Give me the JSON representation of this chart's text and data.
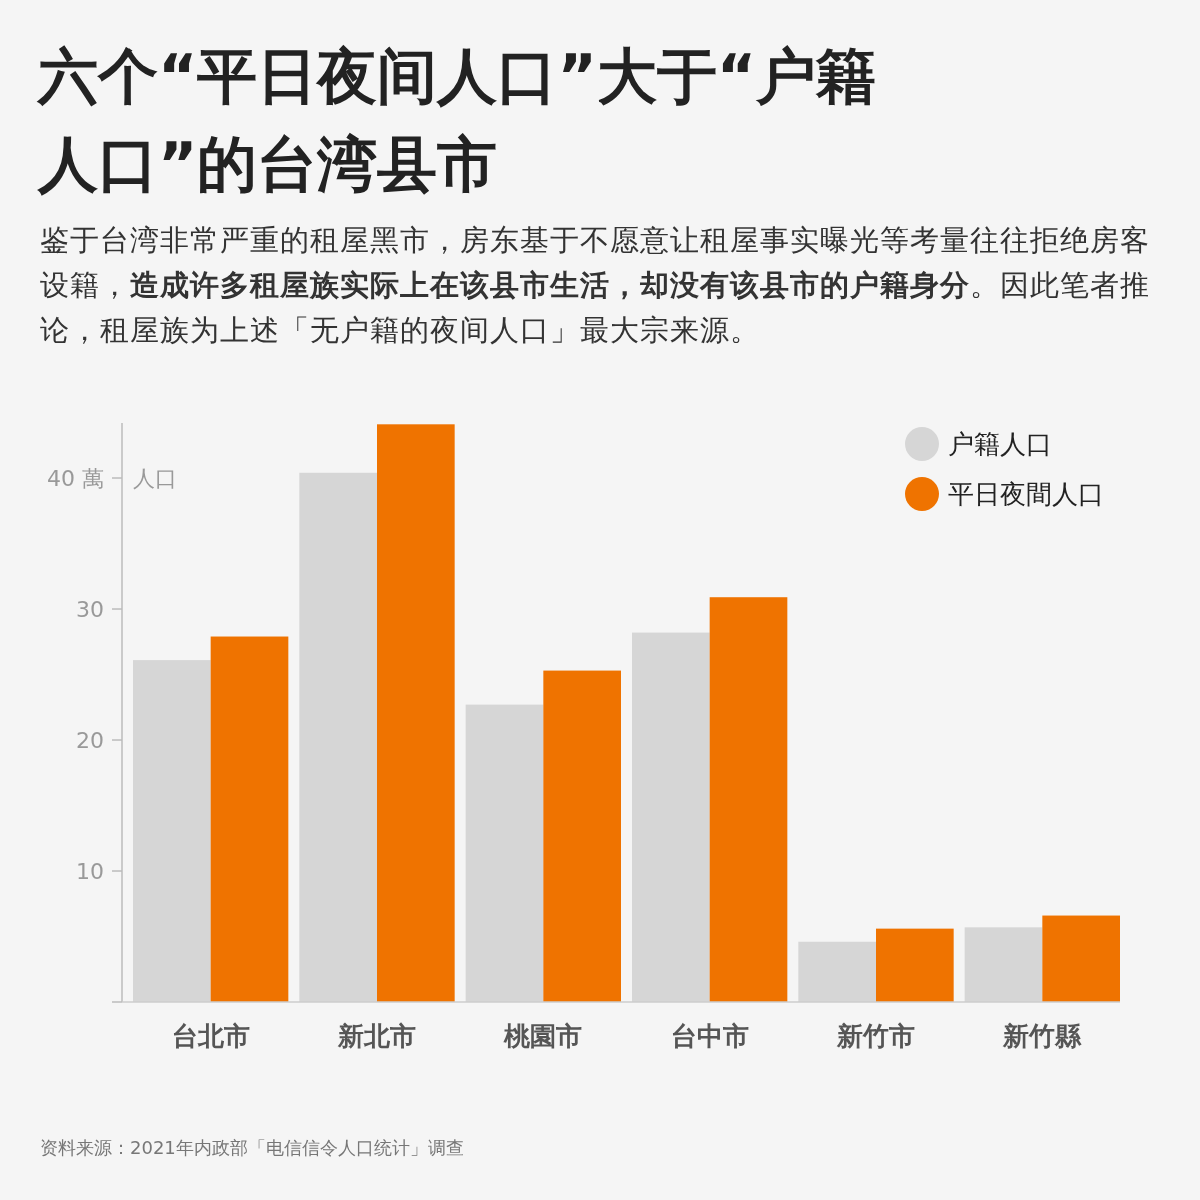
{
  "chart_data": {
    "type": "bar",
    "title": "六个“平日夜间人口”大于“户籍人口”的台湾县市",
    "subtitle": "鉴于台湾非常严重的租屋黑市，房东基于不愿意让租屋事实曝光等考量往往拒绝房客设籍，**造成许多租屋族实际上在该县市生活，却没有该县市的户籍身分**。因此笔者推论，租屋族为上述「无户籍的夜间人口」最大宗来源。",
    "ylabel": "人口",
    "categories": [
      "台北市",
      "新北市",
      "桃園市",
      "台中市",
      "新竹市",
      "新竹縣"
    ],
    "series": [
      {
        "name": "户籍人口",
        "color": "#d6d6d6",
        "values": [
          26.1,
          40.4,
          22.7,
          28.2,
          4.6,
          5.7
        ]
      },
      {
        "name": "平日夜間人口",
        "color": "#ef7300",
        "values": [
          27.9,
          44.1,
          25.3,
          30.9,
          5.6,
          6.6
        ]
      }
    ],
    "ylim": [
      0,
      44.2
    ],
    "yticks": [
      {
        "value": 0,
        "label": null
      },
      10,
      20,
      30,
      {
        "value": 40,
        "label": "40 萬"
      }
    ],
    "legend": "top right",
    "annotations": [
      "资料来源：2021年内政部「电信信令人口统计」调查"
    ]
  }
}
